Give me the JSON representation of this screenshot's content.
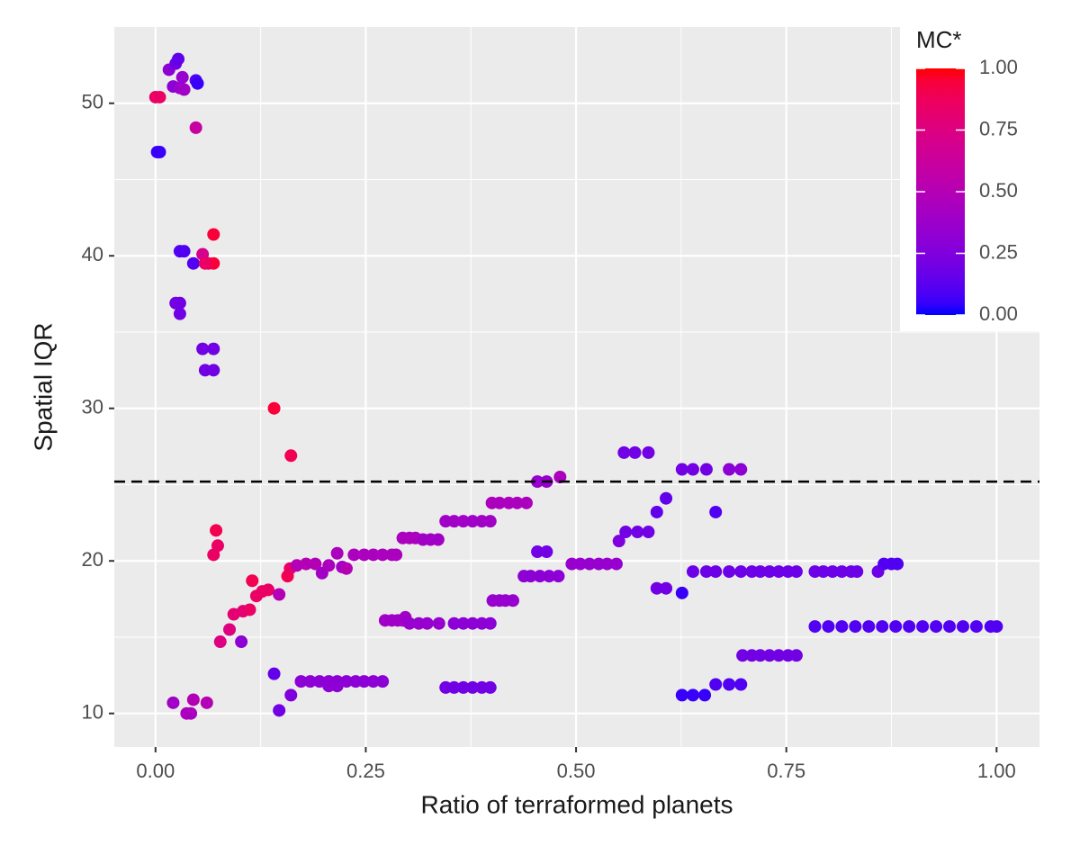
{
  "chart_data": {
    "type": "scatter",
    "x_label": "Ratio of terraformed planets",
    "y_label": "Spatial IQR",
    "xlim": [
      -0.049,
      1.051
    ],
    "ylim": [
      7.8,
      55
    ],
    "xticks": [
      {
        "value": 0,
        "label": "0.00"
      },
      0.25,
      {
        "value": 0.5,
        "label": "0.50"
      },
      0.75,
      {
        "value": 1,
        "label": "1.00"
      }
    ],
    "yticks": [
      10,
      20,
      30,
      40,
      50
    ],
    "grid": true,
    "hline": 25.2,
    "x": [
      0,
      0.005,
      0.002,
      0.005,
      0.016,
      0.024,
      0.027,
      0.021,
      0.029,
      0.034,
      0.032,
      0.048,
      0.05,
      0.048,
      0.029,
      0.034,
      0.045,
      0.056,
      0.063,
      0.069,
      0.059,
      0.069,
      0.024,
      0.029,
      0.029,
      0.056,
      0.069,
      0.059,
      0.069,
      0.141,
      0.161,
      0.072,
      0.074,
      0.069,
      0.077,
      0.088,
      0.093,
      0.104,
      0.112,
      0.102,
      0.115,
      0.12,
      0.127,
      0.134,
      0.147,
      0.157,
      0.16,
      0.168,
      0.179,
      0.19,
      0.198,
      0.206,
      0.216,
      0.222,
      0.227,
      0.236,
      0.248,
      0.259,
      0.27,
      0.281,
      0.286,
      0.294,
      0.302,
      0.309,
      0.318,
      0.327,
      0.336,
      0.345,
      0.355,
      0.366,
      0.377,
      0.388,
      0.398,
      0.4,
      0.409,
      0.42,
      0.43,
      0.441,
      0.454,
      0.465,
      0.481,
      0.273,
      0.281,
      0.288,
      0.294,
      0.297,
      0.302,
      0.313,
      0.323,
      0.337,
      0.355,
      0.366,
      0.377,
      0.388,
      0.398,
      0.401,
      0.409,
      0.416,
      0.425,
      0.438,
      0.446,
      0.457,
      0.468,
      0.479,
      0.454,
      0.465,
      0.495,
      0.505,
      0.516,
      0.527,
      0.537,
      0.548,
      0.551,
      0.559,
      0.573,
      0.586,
      0.557,
      0.57,
      0.586,
      0.596,
      0.607,
      0.596,
      0.607,
      0.626,
      0.626,
      0.639,
      0.655,
      0.682,
      0.696,
      0.666,
      0.639,
      0.655,
      0.666,
      0.682,
      0.696,
      0.709,
      0.719,
      0.73,
      0.741,
      0.752,
      0.762,
      0.784,
      0.794,
      0.805,
      0.816,
      0.827,
      0.834,
      0.859,
      0.866,
      0.875,
      0.882,
      0.698,
      0.709,
      0.719,
      0.73,
      0.741,
      0.752,
      0.762,
      0.784,
      0.8,
      0.816,
      0.832,
      0.848,
      0.864,
      0.88,
      0.896,
      0.912,
      0.928,
      0.944,
      0.96,
      0.976,
      0.993,
      1,
      0.626,
      0.639,
      0.653,
      0.666,
      0.682,
      0.696,
      0.173,
      0.184,
      0.195,
      0.206,
      0.216,
      0.227,
      0.238,
      0.248,
      0.259,
      0.27,
      0.206,
      0.216,
      0.345,
      0.355,
      0.366,
      0.377,
      0.388,
      0.398,
      0.141,
      0.161,
      0.147,
      0.021,
      0.045,
      0.037,
      0.042,
      0.061
    ],
    "values": [
      50.4,
      50.4,
      46.8,
      46.8,
      52.2,
      52.6,
      52.9,
      51.1,
      51.0,
      50.9,
      51.7,
      51.5,
      51.3,
      48.4,
      40.3,
      40.3,
      39.5,
      40.1,
      39.5,
      39.5,
      39.5,
      41.4,
      36.9,
      36.9,
      36.2,
      33.9,
      33.9,
      32.5,
      32.5,
      30.0,
      26.9,
      22.0,
      21.0,
      20.4,
      14.7,
      15.5,
      16.5,
      16.7,
      16.8,
      14.7,
      18.7,
      17.7,
      18.0,
      18.1,
      17.8,
      19.0,
      19.5,
      19.7,
      19.8,
      19.8,
      19.2,
      19.7,
      20.5,
      19.6,
      19.5,
      20.4,
      20.4,
      20.4,
      20.4,
      20.4,
      20.4,
      21.5,
      21.5,
      21.5,
      21.4,
      21.4,
      21.4,
      22.6,
      22.6,
      22.6,
      22.6,
      22.6,
      22.6,
      23.8,
      23.8,
      23.8,
      23.8,
      23.8,
      25.2,
      25.2,
      25.5,
      16.1,
      16.1,
      16.1,
      16.1,
      16.3,
      15.9,
      15.9,
      15.9,
      15.9,
      15.9,
      15.9,
      15.9,
      15.9,
      15.9,
      17.4,
      17.4,
      17.4,
      17.4,
      19.0,
      19.0,
      19.0,
      19.0,
      19.0,
      20.6,
      20.6,
      19.8,
      19.8,
      19.8,
      19.8,
      19.8,
      19.8,
      21.3,
      21.9,
      21.9,
      21.9,
      27.1,
      27.1,
      27.1,
      23.2,
      24.1,
      18.2,
      18.2,
      17.9,
      26.0,
      26.0,
      26.0,
      26.0,
      26.0,
      23.2,
      19.3,
      19.3,
      19.3,
      19.3,
      19.3,
      19.3,
      19.3,
      19.3,
      19.3,
      19.3,
      19.3,
      19.3,
      19.3,
      19.3,
      19.3,
      19.3,
      19.3,
      19.3,
      19.8,
      19.8,
      19.8,
      13.8,
      13.8,
      13.8,
      13.8,
      13.8,
      13.8,
      13.8,
      15.7,
      15.7,
      15.7,
      15.7,
      15.7,
      15.7,
      15.7,
      15.7,
      15.7,
      15.7,
      15.7,
      15.7,
      15.7,
      15.7,
      15.7,
      11.2,
      11.2,
      11.2,
      11.9,
      11.9,
      11.9,
      12.1,
      12.1,
      12.1,
      12.1,
      12.1,
      12.1,
      12.1,
      12.1,
      12.1,
      12.1,
      11.8,
      11.8,
      11.7,
      11.7,
      11.7,
      11.7,
      11.7,
      11.7,
      12.6,
      11.2,
      10.2,
      10.7,
      10.9,
      10.0,
      10.0,
      10.7
    ],
    "mc": [
      0.85,
      0.85,
      0.05,
      0.05,
      0.3,
      0.2,
      0.15,
      0.3,
      0.35,
      0.4,
      0.35,
      0.1,
      0.05,
      0.6,
      0.1,
      0.1,
      0.1,
      0.7,
      0.9,
      0.95,
      0.85,
      0.95,
      0.2,
      0.2,
      0.2,
      0.2,
      0.2,
      0.2,
      0.2,
      0.95,
      0.9,
      0.9,
      0.85,
      0.85,
      0.75,
      0.75,
      0.8,
      0.8,
      0.85,
      0.3,
      0.9,
      0.85,
      0.85,
      0.85,
      0.5,
      0.9,
      0.85,
      0.5,
      0.5,
      0.5,
      0.4,
      0.45,
      0.45,
      0.4,
      0.5,
      0.45,
      0.45,
      0.45,
      0.45,
      0.45,
      0.45,
      0.45,
      0.45,
      0.45,
      0.4,
      0.4,
      0.4,
      0.4,
      0.4,
      0.4,
      0.4,
      0.4,
      0.4,
      0.45,
      0.45,
      0.45,
      0.45,
      0.45,
      0.35,
      0.35,
      0.45,
      0.4,
      0.4,
      0.4,
      0.4,
      0.4,
      0.35,
      0.35,
      0.35,
      0.35,
      0.3,
      0.3,
      0.3,
      0.3,
      0.3,
      0.35,
      0.35,
      0.35,
      0.35,
      0.3,
      0.3,
      0.3,
      0.3,
      0.3,
      0.2,
      0.2,
      0.35,
      0.35,
      0.35,
      0.35,
      0.35,
      0.35,
      0.25,
      0.2,
      0.2,
      0.2,
      0.2,
      0.2,
      0.2,
      0.15,
      0.15,
      0.2,
      0.2,
      0.05,
      0.2,
      0.2,
      0.2,
      0.3,
      0.3,
      0.1,
      0.18,
      0.18,
      0.18,
      0.18,
      0.18,
      0.18,
      0.18,
      0.18,
      0.18,
      0.18,
      0.18,
      0.18,
      0.18,
      0.18,
      0.18,
      0.18,
      0.18,
      0.18,
      0.1,
      0.1,
      0.1,
      0.2,
      0.2,
      0.2,
      0.2,
      0.2,
      0.2,
      0.2,
      0.1,
      0.1,
      0.1,
      0.1,
      0.1,
      0.1,
      0.1,
      0.1,
      0.1,
      0.1,
      0.1,
      0.1,
      0.1,
      0.1,
      0.1,
      0.05,
      0.05,
      0.05,
      0.1,
      0.1,
      0.1,
      0.3,
      0.3,
      0.3,
      0.3,
      0.3,
      0.3,
      0.3,
      0.3,
      0.3,
      0.3,
      0.3,
      0.3,
      0.2,
      0.2,
      0.2,
      0.2,
      0.2,
      0.2,
      0.15,
      0.25,
      0.2,
      0.4,
      0.5,
      0.45,
      0.45,
      0.5
    ],
    "colorbar": {
      "title": "MC*",
      "lim": [
        0,
        1
      ],
      "low": "#0000ff",
      "high": "#ff0000",
      "ticks": [
        {
          "value": 0,
          "label": "0.00"
        },
        0.25,
        {
          "value": 0.5,
          "label": "0.50"
        },
        0.75,
        {
          "value": 1,
          "label": "1.00"
        }
      ]
    }
  }
}
